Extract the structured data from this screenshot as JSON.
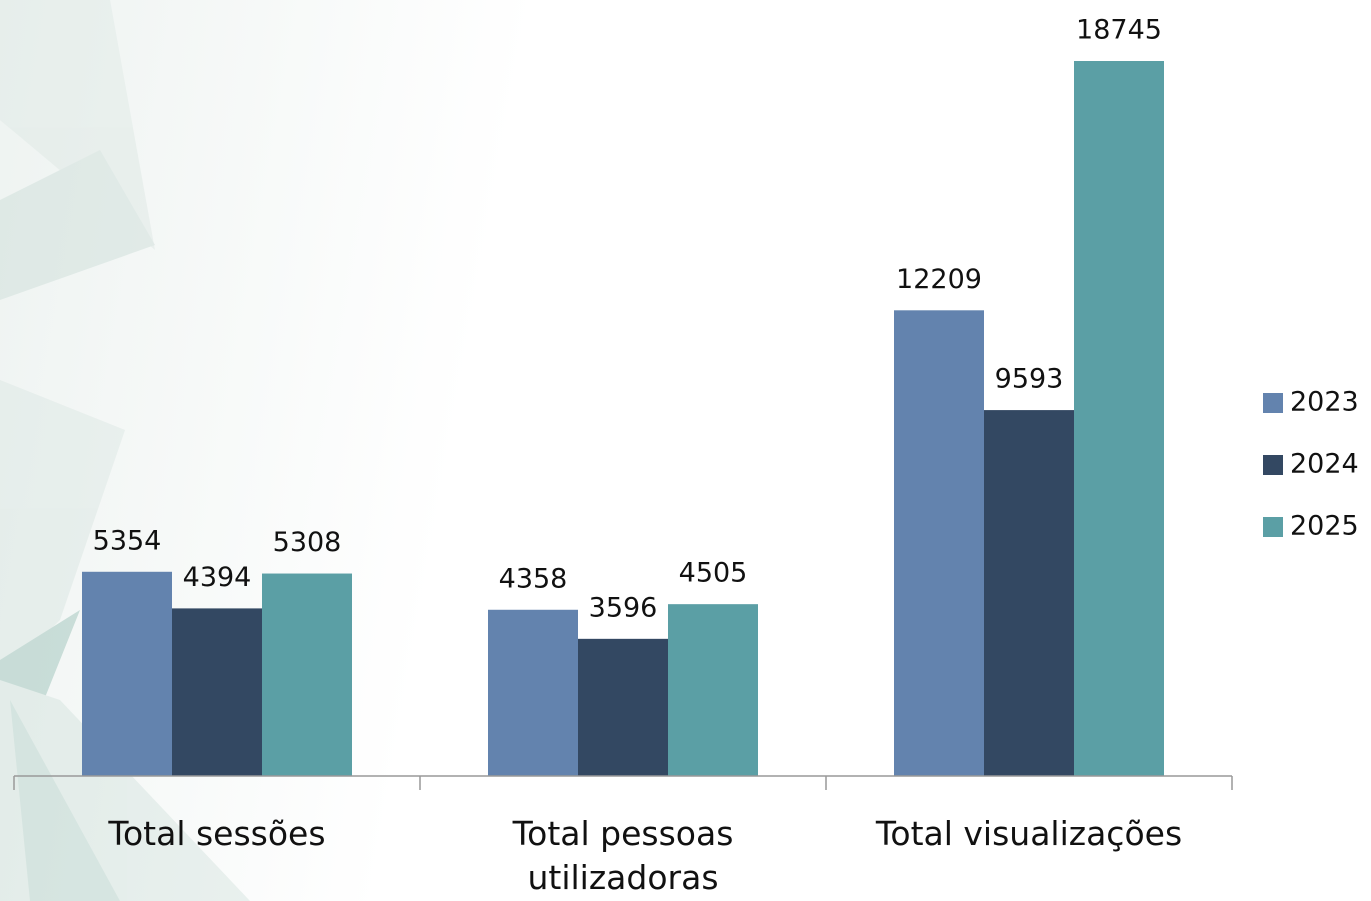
{
  "chart_data": {
    "type": "bar",
    "categories": [
      "Total sessões",
      "Total pessoas utilizadoras",
      "Total visualizações"
    ],
    "series": [
      {
        "name": "2023",
        "color": "#6383ae",
        "values": [
          5354,
          4358,
          12209
        ]
      },
      {
        "name": "2024",
        "color": "#334862",
        "values": [
          4394,
          3596,
          9593
        ]
      },
      {
        "name": "2025",
        "color": "#5b9fa5",
        "values": [
          5308,
          4505,
          18745
        ]
      }
    ],
    "legend": "right"
  }
}
